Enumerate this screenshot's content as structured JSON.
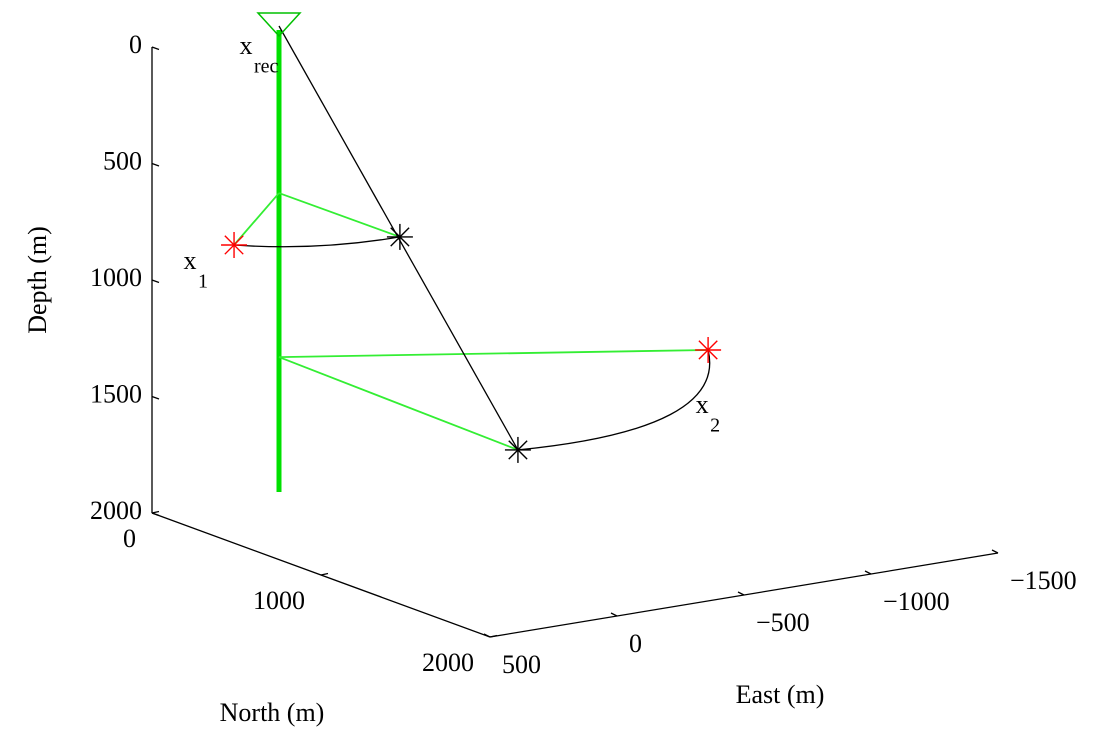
{
  "chart_data": {
    "type": "scatter3d",
    "xlabel": "East (m)",
    "ylabel": "North (m)",
    "zlabel": "Depth (m)",
    "xlim": [
      500,
      -1500
    ],
    "xticks": [
      500,
      0,
      -500,
      -1000,
      -1500
    ],
    "ylim": [
      0,
      2000
    ],
    "yticks": [
      0,
      1000,
      2000
    ],
    "zlim": [
      0,
      2000
    ],
    "zticks": [
      0,
      500,
      1000,
      1500,
      2000
    ],
    "zreverse": true,
    "well": {
      "color": "#00e000",
      "x": [
        0,
        0
      ],
      "y": [
        0,
        0
      ],
      "z": [
        0,
        2000
      ]
    },
    "points": [
      {
        "label": "x",
        "sub": "rec",
        "color": "#00c000",
        "marker": "triangle-down",
        "x": 0,
        "y": 0,
        "z": 0
      },
      {
        "label": "x",
        "sub": "1",
        "color": "#ff0000",
        "marker": "star",
        "x": 177,
        "y": 0,
        "z": 908
      },
      {
        "color": "#000000",
        "marker": "star",
        "x": -476,
        "y": 0,
        "z": 991
      },
      {
        "label": "x",
        "sub": "2",
        "color": "#ff0000",
        "marker": "star",
        "x": -1024,
        "y": 1000,
        "z": 1309
      },
      {
        "color": "#000000",
        "marker": "star",
        "x": -608,
        "y": 500,
        "z": 1796
      }
    ],
    "lines": [
      {
        "color": "#33ee33",
        "x": [
          0,
          177
        ],
        "y": [
          0,
          0
        ],
        "z": [
          717,
          908
        ]
      },
      {
        "color": "#33ee33",
        "x": [
          0,
          -476
        ],
        "y": [
          0,
          0
        ],
        "z": [
          717,
          991
        ]
      },
      {
        "color": "#33ee33",
        "x": [
          0,
          -1024
        ],
        "y": [
          0,
          1000
        ],
        "z": [
          1421,
          1309
        ]
      },
      {
        "color": "#33ee33",
        "x": [
          0,
          -608
        ],
        "y": [
          0,
          500
        ],
        "z": [
          1421,
          1796
        ]
      },
      {
        "color": "#000000",
        "x": [
          0,
          -608
        ],
        "y": [
          0,
          500
        ],
        "z": [
          0,
          1796
        ]
      },
      {
        "color": "#000000",
        "curve": true,
        "x": [
          177,
          -150,
          -476
        ],
        "y": [
          0,
          0,
          0
        ],
        "z": [
          908,
          971,
          991
        ]
      },
      {
        "color": "#000000",
        "curve": true,
        "x": [
          -608,
          -1041,
          -1024
        ],
        "y": [
          500,
          750,
          1000
        ],
        "z": [
          1796,
          1656,
          1309
        ]
      }
    ]
  }
}
